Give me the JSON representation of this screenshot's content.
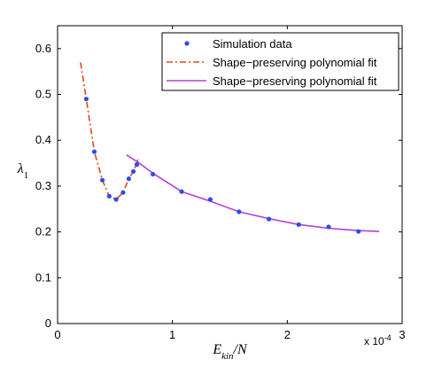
{
  "chart_data": {
    "type": "line",
    "xlabel": "E_kin/N",
    "xlabel_main": "E",
    "xlabel_sub": "kin",
    "xlabel_tail": "/N",
    "ylabel": "λ1",
    "ylabel_main": "λ",
    "ylabel_sub": "1",
    "xlim": [
      0,
      3
    ],
    "ylim": [
      0,
      0.65
    ],
    "x_ticks": [
      0,
      1,
      2,
      3
    ],
    "x_tick_labels": [
      "0",
      "1",
      "2",
      "3"
    ],
    "y_ticks": [
      0,
      0.1,
      0.2,
      0.3,
      0.4,
      0.5,
      0.6
    ],
    "y_tick_labels": [
      "0",
      "0.1",
      "0.2",
      "0.3",
      "0.4",
      "0.5",
      "0.6"
    ],
    "x_multiplier": "x 10",
    "x_multiplier_exponent": "-4",
    "grid": false,
    "legend_position": "top-right",
    "colors": {
      "scatter": "#2b4ee6",
      "fit1": "#e04a1a",
      "fit2": "#b040d8"
    },
    "series": [
      {
        "name": "Simulation data",
        "kind": "scatter",
        "x": [
          0.25,
          0.32,
          0.39,
          0.45,
          0.51,
          0.57,
          0.62,
          0.66,
          0.69,
          0.83,
          1.08,
          1.33,
          1.58,
          1.84,
          2.1,
          2.36,
          2.62
        ],
        "y": [
          0.49,
          0.375,
          0.313,
          0.278,
          0.271,
          0.286,
          0.316,
          0.332,
          0.347,
          0.326,
          0.288,
          0.271,
          0.244,
          0.228,
          0.216,
          0.211,
          0.201
        ]
      },
      {
        "name": "Shape−preserving polynomial fit",
        "kind": "line",
        "style": "dashdot",
        "x": [
          0.2,
          0.25,
          0.32,
          0.39,
          0.45,
          0.51,
          0.57,
          0.62,
          0.66,
          0.7
        ],
        "y": [
          0.57,
          0.49,
          0.375,
          0.313,
          0.278,
          0.271,
          0.286,
          0.316,
          0.332,
          0.358
        ]
      },
      {
        "name": "Shape−preserving polynomial fit",
        "kind": "line",
        "style": "solid",
        "x": [
          0.6,
          0.7,
          0.83,
          1.08,
          1.33,
          1.58,
          1.84,
          2.1,
          2.36,
          2.62,
          2.8
        ],
        "y": [
          0.368,
          0.352,
          0.328,
          0.288,
          0.267,
          0.244,
          0.229,
          0.216,
          0.208,
          0.203,
          0.201
        ]
      }
    ]
  }
}
